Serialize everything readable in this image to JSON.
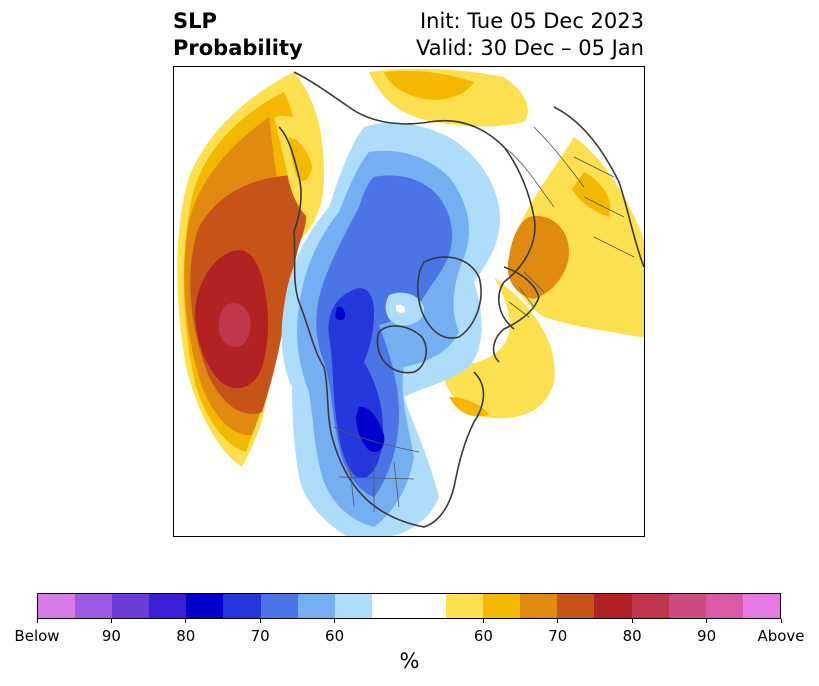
{
  "title": {
    "left_line1": "SLP",
    "left_line2": "Probability",
    "right_line1": "Init: Tue 05 Dec 2023",
    "right_line2": "Valid: 30 Dec – 05 Jan"
  },
  "colorbar": {
    "segments": [
      {
        "color": "#d57ae8",
        "category": "below"
      },
      {
        "color": "#9e59e5",
        "category": "below"
      },
      {
        "color": "#6b3dd9",
        "category": "below"
      },
      {
        "color": "#3a1fd6",
        "category": "below"
      },
      {
        "color": "#0000cd",
        "category": "below"
      },
      {
        "color": "#2437db",
        "category": "below"
      },
      {
        "color": "#4b74e6",
        "category": "below"
      },
      {
        "color": "#75aef1",
        "category": "below"
      },
      {
        "color": "#aedcfb",
        "category": "below"
      },
      {
        "color": "#ffffff",
        "category": "neutral"
      },
      {
        "color": "#ffffff",
        "category": "neutral"
      },
      {
        "color": "#fde050",
        "category": "above"
      },
      {
        "color": "#f4b800",
        "category": "above"
      },
      {
        "color": "#e08a10",
        "category": "above"
      },
      {
        "color": "#c65418",
        "category": "above"
      },
      {
        "color": "#b22222",
        "category": "above"
      },
      {
        "color": "#c0364a",
        "category": "above"
      },
      {
        "color": "#cc4a7e",
        "category": "above"
      },
      {
        "color": "#da5aa8",
        "category": "above"
      },
      {
        "color": "#e47ae2",
        "category": "above"
      }
    ],
    "tick_labels": [
      "Below",
      "90",
      "80",
      "70",
      "60",
      "60",
      "70",
      "80",
      "90",
      "Above"
    ],
    "units_label": "%"
  },
  "map": {
    "projection": "north-polar-stereographic",
    "colors": {
      "coastline": "#3a3a3a",
      "border": "#555555"
    }
  }
}
